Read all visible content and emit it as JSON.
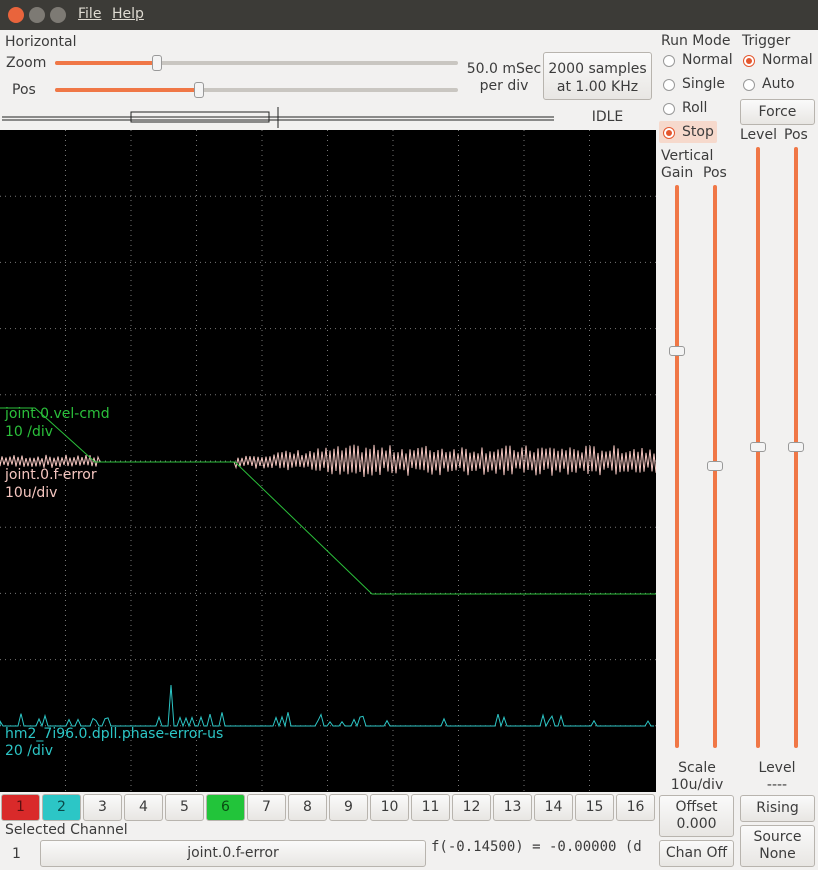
{
  "menu": [
    "File",
    "Help"
  ],
  "horizontal": {
    "title": "Horizontal",
    "zoom_label": "Zoom",
    "pos_label": "Pos",
    "rate": "50.0 mSec",
    "rate_unit": "per div",
    "samples": "2000 samples",
    "sample_rate": "at 1.00 KHz",
    "status": "IDLE"
  },
  "run_mode": {
    "title": "Run Mode",
    "options": [
      "Normal",
      "Single",
      "Roll",
      "Stop"
    ]
  },
  "trigger": {
    "title": "Trigger",
    "options": [
      "Normal",
      "Auto"
    ],
    "force": "Force",
    "level_label": "Level",
    "pos_label": "Pos",
    "level_title": "Level",
    "level_value": "----",
    "edge": "Rising",
    "source_label": "Source",
    "source_value": "None"
  },
  "vertical": {
    "title": "Vertical",
    "gain_label": "Gain",
    "pos_label": "Pos",
    "scale_label": "Scale",
    "scale_value": "10u/div",
    "offset_label": "Offset",
    "offset_value": "0.000",
    "chan_off": "Chan Off"
  },
  "traces": [
    {
      "name": "joint.0.vel-cmd",
      "scale": "10 /div"
    },
    {
      "name": "joint.0.f-error",
      "scale": "10u/div"
    },
    {
      "name": "hm2_7i96.0.dpll.phase-error-us",
      "scale": "20 /div"
    }
  ],
  "channels": [
    "1",
    "2",
    "3",
    "4",
    "5",
    "6",
    "7",
    "8",
    "9",
    "10",
    "11",
    "12",
    "13",
    "14",
    "15",
    "16"
  ],
  "selected": {
    "title": "Selected Channel",
    "number": "1",
    "name": "joint.0.f-error",
    "readout": "f(-0.14500) = -0.00000 (d"
  }
}
